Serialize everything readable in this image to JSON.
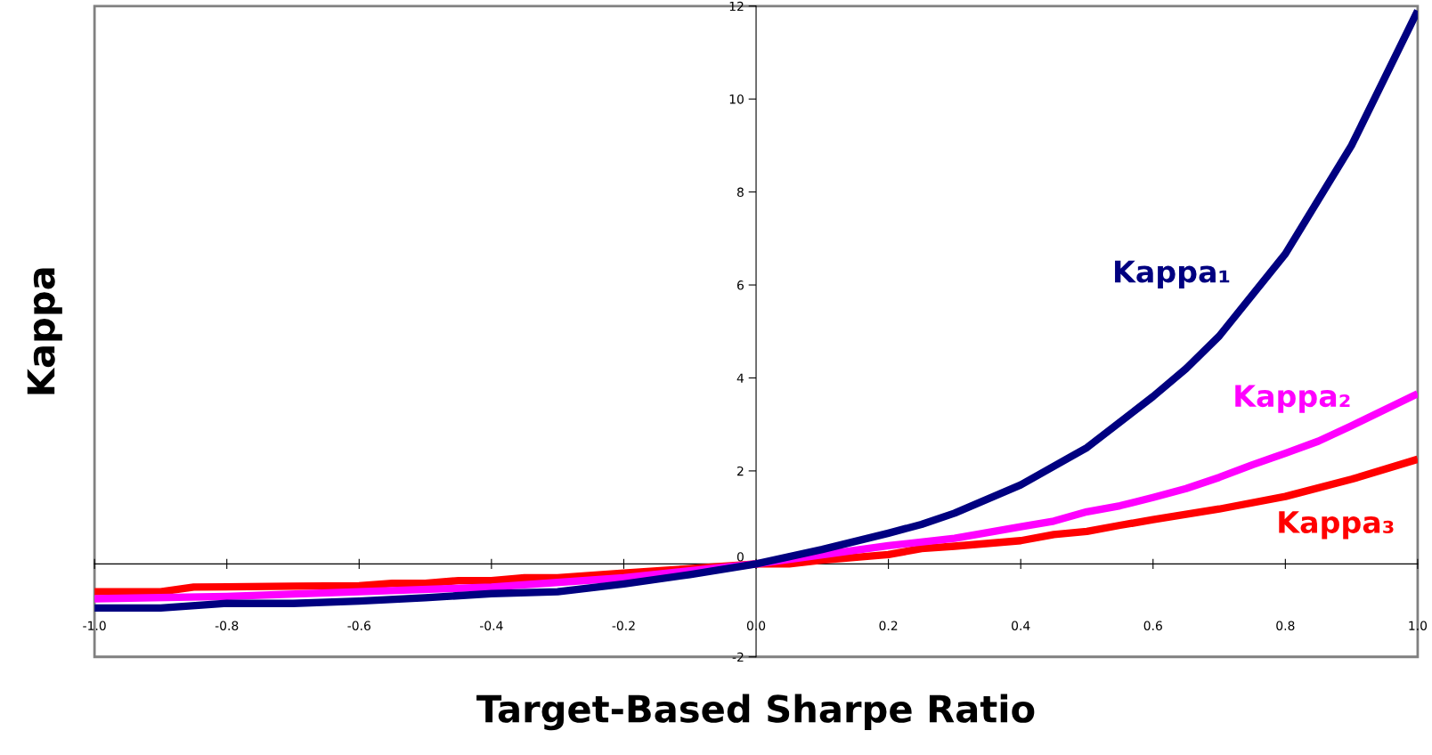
{
  "chart_data": {
    "type": "line",
    "xlabel": "Target-Based Sharpe Ratio",
    "ylabel": "Kappa",
    "xlim": [
      -1,
      1
    ],
    "ylim": [
      -2,
      12
    ],
    "xticks": [
      {
        "value": -1,
        "label": "-1.0"
      },
      {
        "value": -0.8,
        "label": "-0.8"
      },
      {
        "value": -0.6,
        "label": "-0.6"
      },
      {
        "value": -0.4,
        "label": "-0.4"
      },
      {
        "value": -0.2,
        "label": "-0.2"
      },
      {
        "value": 0,
        "label": "0.0"
      },
      {
        "value": 0.2,
        "label": "0.2"
      },
      {
        "value": 0.4,
        "label": "0.4"
      },
      {
        "value": 0.6,
        "label": "0.6"
      },
      {
        "value": 0.8,
        "label": "0.8"
      },
      {
        "value": 1,
        "label": "1.0"
      }
    ],
    "yticks": [
      -2,
      0,
      2,
      4,
      6,
      8,
      10,
      12
    ],
    "legend": false,
    "marker": "none",
    "line_style": "solid",
    "series": [
      {
        "name": "Kappa₁",
        "color": "#000080",
        "x": [
          -1,
          -0.9,
          -0.8,
          -0.7,
          -0.6,
          -0.5,
          -0.4,
          -0.3,
          -0.2,
          -0.1,
          0,
          0.1,
          0.2,
          0.25,
          0.3,
          0.4,
          0.5,
          0.6,
          0.65,
          0.7,
          0.8,
          0.9,
          1
        ],
        "values": [
          -0.95,
          -0.95,
          -0.85,
          -0.85,
          -0.8,
          -0.73,
          -0.64,
          -0.6,
          -0.43,
          -0.23,
          0,
          0.31,
          0.66,
          0.85,
          1.09,
          1.7,
          2.5,
          3.6,
          4.2,
          4.9,
          6.67,
          9.0,
          11.9
        ]
      },
      {
        "name": "Kappa₂",
        "color": "#ff00ff",
        "x": [
          -1,
          -0.8,
          -0.6,
          -0.4,
          -0.2,
          0,
          0.2,
          0.3,
          0.4,
          0.45,
          0.5,
          0.55,
          0.6,
          0.65,
          0.7,
          0.75,
          0.8,
          0.85,
          0.9,
          1
        ],
        "values": [
          -0.75,
          -0.7,
          -0.6,
          -0.5,
          -0.3,
          0,
          0.39,
          0.55,
          0.8,
          0.92,
          1.12,
          1.25,
          1.43,
          1.62,
          1.86,
          2.13,
          2.38,
          2.64,
          2.97,
          3.66
        ]
      },
      {
        "name": "Kappa₃",
        "color": "#ff0000",
        "x": [
          -1,
          -0.9,
          -0.85,
          -0.7,
          -0.6,
          -0.55,
          -0.5,
          -0.45,
          -0.4,
          -0.35,
          -0.3,
          -0.2,
          -0.1,
          0,
          0.05,
          0.1,
          0.2,
          0.25,
          0.3,
          0.4,
          0.45,
          0.5,
          0.55,
          0.6,
          0.7,
          0.8,
          0.9,
          1
        ],
        "values": [
          -0.6,
          -0.6,
          -0.5,
          -0.48,
          -0.47,
          -0.42,
          -0.42,
          -0.36,
          -0.36,
          -0.3,
          -0.3,
          -0.2,
          -0.1,
          0,
          0,
          0.08,
          0.2,
          0.33,
          0.38,
          0.5,
          0.63,
          0.7,
          0.83,
          0.95,
          1.18,
          1.45,
          1.82,
          2.25
        ]
      }
    ]
  }
}
